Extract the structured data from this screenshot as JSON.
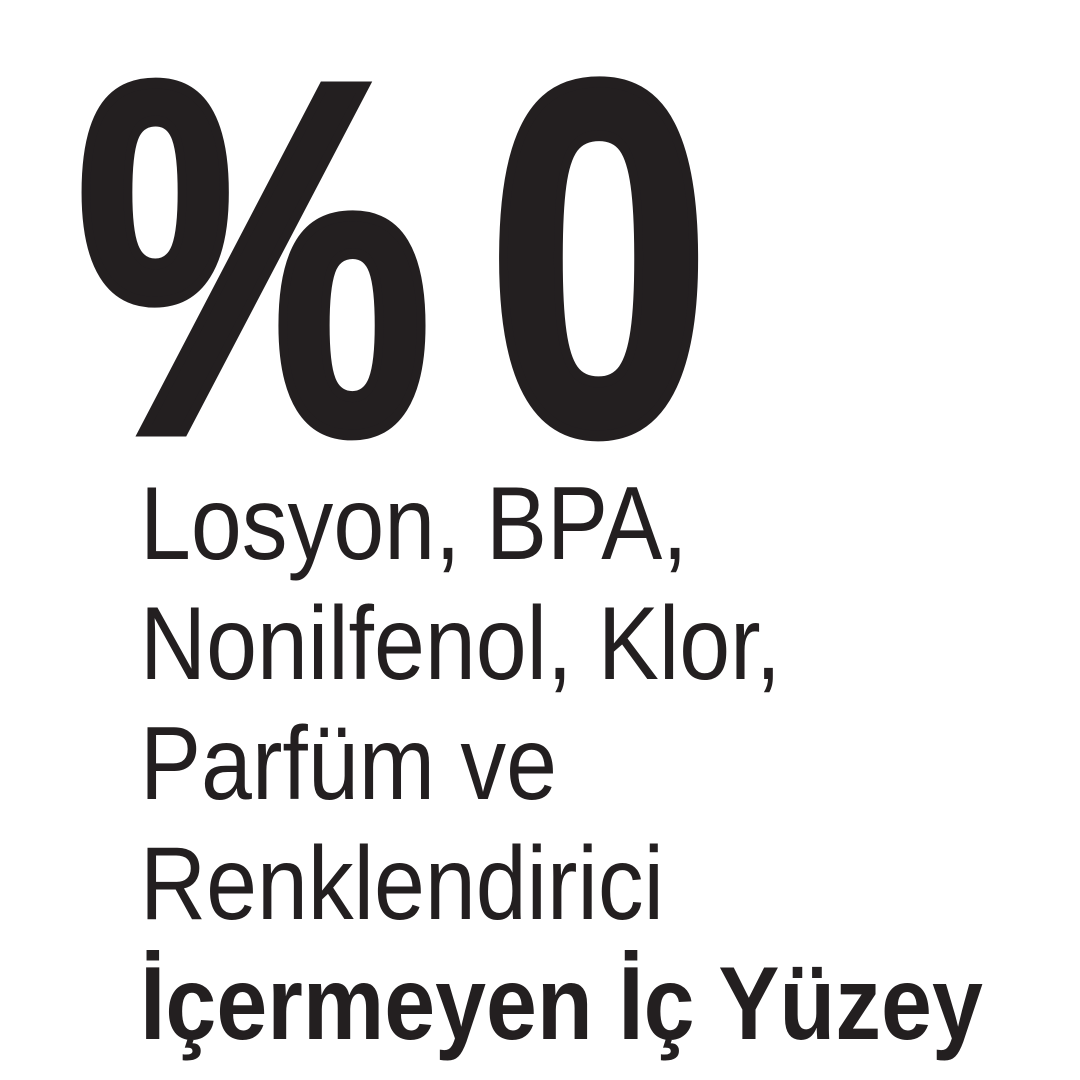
{
  "page": {
    "background": "#ffffff",
    "text_color": "#231f20",
    "language": "Turkish"
  },
  "claim": {
    "headline": "%0",
    "lines": [
      "Losyon, BPA,",
      "Nonilfenol, Klor,",
      "Parfüm ve",
      "Renklendirici"
    ],
    "emphasis": "İçermeyen İç Yüzey"
  }
}
